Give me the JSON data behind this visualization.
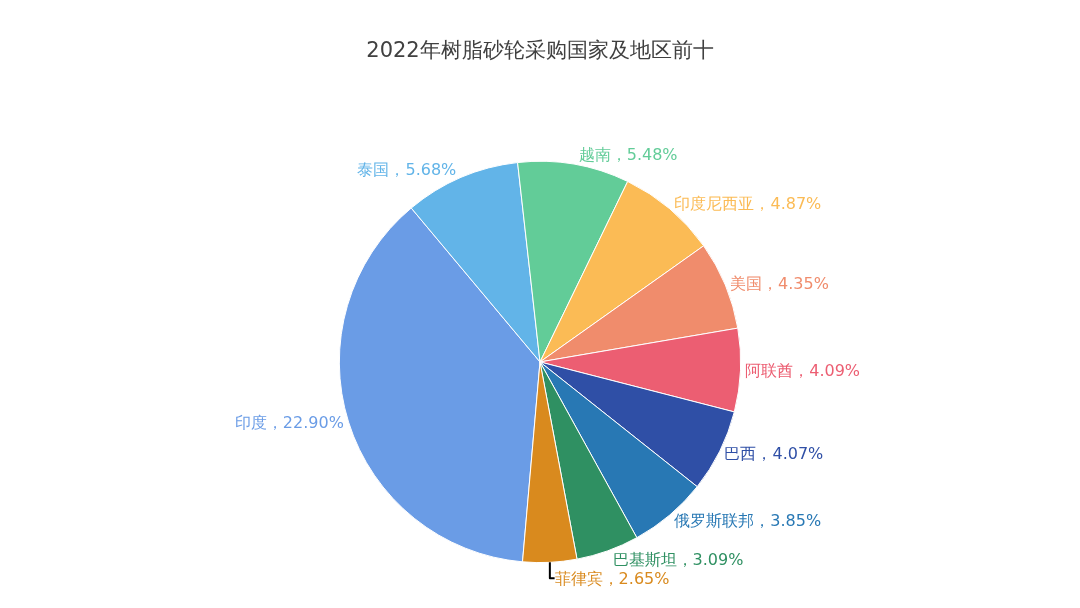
{
  "chart_data": {
    "type": "pie",
    "title": "2022年树脂砂轮采购国家及地区前十",
    "categories": [
      "印度",
      "泰国",
      "越南",
      "印度尼西亚",
      "美国",
      "阿联酋",
      "巴西",
      "俄罗斯联邦",
      "巴基斯坦",
      "菲律宾"
    ],
    "values": [
      22.9,
      5.68,
      5.48,
      4.87,
      4.35,
      4.09,
      4.07,
      3.85,
      3.09,
      2.65
    ],
    "colors": [
      "#6a9ce6",
      "#62b4e8",
      "#62cc98",
      "#fbbb55",
      "#f08c6c",
      "#ec5e72",
      "#2f4fa6",
      "#2878b4",
      "#2f9062",
      "#d98a1e"
    ],
    "value_labels": [
      "22.90%",
      "5.68%",
      "5.48%",
      "4.87%",
      "4.35%",
      "4.09%",
      "4.07%",
      "3.85%",
      "3.09%",
      "2.65%"
    ]
  }
}
